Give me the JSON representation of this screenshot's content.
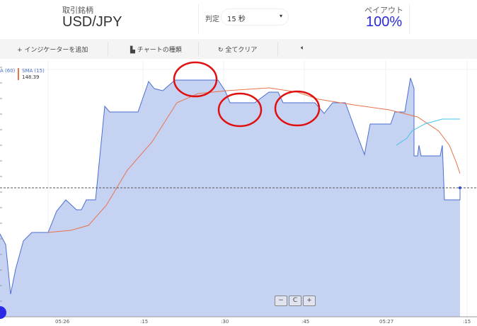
{
  "header": {
    "symbol_label": "取引銘柄",
    "symbol": "USD/JPY",
    "judge_label": "判定",
    "judge_value": "15 秒",
    "payout_label": "ペイアウト",
    "payout": "100%"
  },
  "toolbar": {
    "add_indicator": "+ インジケーターを追加",
    "chart_type": "チャートの種類",
    "clear_all": "全てクリア",
    "sound_icon": "speaker-icon"
  },
  "legend": {
    "sma60": "A (60)",
    "sma15": "SMA (15)",
    "sma15_value": "148.39"
  },
  "x_labels": [
    "05:26",
    ":15",
    ":30",
    ":45",
    "05:27",
    ":15"
  ],
  "zoom_controls": {
    "minus": "−",
    "reset": "C",
    "plus": "+"
  },
  "colors": {
    "area_fill": "#c6d2f2",
    "area_line": "#4a6fd0",
    "sma15": "#e8734a",
    "sma60": "#3fc4e8",
    "annotation": "#e01010",
    "payout": "#2a2ad6"
  }
}
